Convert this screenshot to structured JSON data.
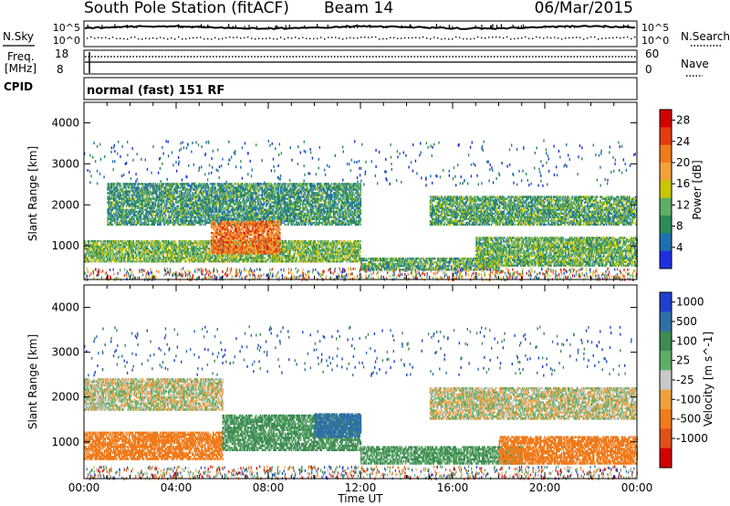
{
  "header": {
    "station": "South Pole Station (fitACF)",
    "beam": "Beam 14",
    "date": "06/Mar/2015"
  },
  "panels": {
    "nsky_label": "N.Sky",
    "nsky_ticks": [
      "10^5",
      "10^0"
    ],
    "nsearch_label": "N.Search",
    "freq_label": "Freq.",
    "freq_units": "[MHz]",
    "freq_ticks": [
      "18",
      "8"
    ],
    "nave_label": "Nave",
    "nave_ticks": [
      "60",
      "0"
    ],
    "cpid_label": "CPID",
    "cpid_value": "normal (fast) 151 RF"
  },
  "colors": {
    "power_scale": [
      "#1f2fe0",
      "#1e6fb0",
      "#2e8b57",
      "#5fae66",
      "#c9c600",
      "#f2a23a",
      "#f07b1a",
      "#e33b12",
      "#d40000"
    ],
    "velocity_scale": [
      "#1f3fd0",
      "#2e6fa8",
      "#3f8a55",
      "#5fae66",
      "#c8c8c8",
      "#f0a040",
      "#f07b1a",
      "#e0501a",
      "#d40000"
    ]
  },
  "chart_data": [
    {
      "type": "heatmap",
      "quantity": "power",
      "xlabel": "Time UT",
      "ylabel": "Slant Range [km]",
      "xticks": [
        "00:00",
        "04:00",
        "08:00",
        "12:00",
        "16:00",
        "20:00",
        "00:00"
      ],
      "yticks": [
        1000,
        2000,
        3000,
        4000
      ],
      "xlim": [
        0,
        24
      ],
      "ylim": [
        180,
        4500
      ],
      "colorbar_label": "Power [dB]",
      "colorbar_ticks": [
        4,
        8,
        12,
        16,
        20,
        24,
        28
      ],
      "colorbar_range": [
        0,
        30
      ],
      "echo_bands": [
        {
          "t": [
            1.0,
            12.0
          ],
          "range": [
            1500,
            2500
          ],
          "level": 9
        },
        {
          "t": [
            0.0,
            12.0
          ],
          "range": [
            600,
            1100
          ],
          "level": 12
        },
        {
          "t": [
            5.5,
            8.5
          ],
          "range": [
            800,
            1600
          ],
          "level": 22
        },
        {
          "t": [
            12.0,
            18.0
          ],
          "range": [
            400,
            700
          ],
          "level": 10
        },
        {
          "t": [
            15.0,
            24.0
          ],
          "range": [
            1500,
            2200
          ],
          "level": 10
        },
        {
          "t": [
            17.0,
            24.0
          ],
          "range": [
            500,
            1200
          ],
          "level": 11
        }
      ]
    },
    {
      "type": "heatmap",
      "quantity": "velocity",
      "xlabel": "Time UT",
      "ylabel": "Slant Range [km]",
      "xticks": [
        "00:00",
        "04:00",
        "08:00",
        "12:00",
        "16:00",
        "20:00",
        "00:00"
      ],
      "yticks": [
        1000,
        2000,
        3000,
        4000
      ],
      "xlim": [
        0,
        24
      ],
      "ylim": [
        180,
        4500
      ],
      "colorbar_label": "Velocity [m s^-1]",
      "colorbar_ticks": [
        "1000",
        "500",
        "100",
        "25",
        "-25",
        "-100",
        "-500",
        "-1000"
      ],
      "echo_bands": [
        {
          "t": [
            0.0,
            6.0
          ],
          "range": [
            1700,
            2400
          ],
          "velocity": 0
        },
        {
          "t": [
            0.0,
            6.0
          ],
          "range": [
            600,
            1200
          ],
          "velocity": -300
        },
        {
          "t": [
            6.0,
            12.0
          ],
          "range": [
            800,
            1600
          ],
          "velocity": 150
        },
        {
          "t": [
            10.0,
            12.0
          ],
          "range": [
            1100,
            1600
          ],
          "velocity": 800
        },
        {
          "t": [
            12.0,
            19.0
          ],
          "range": [
            500,
            900
          ],
          "velocity": 120
        },
        {
          "t": [
            15.0,
            24.0
          ],
          "range": [
            1500,
            2200
          ],
          "velocity": 0
        },
        {
          "t": [
            18.0,
            24.0
          ],
          "range": [
            500,
            1100
          ],
          "velocity": -400
        }
      ]
    }
  ]
}
